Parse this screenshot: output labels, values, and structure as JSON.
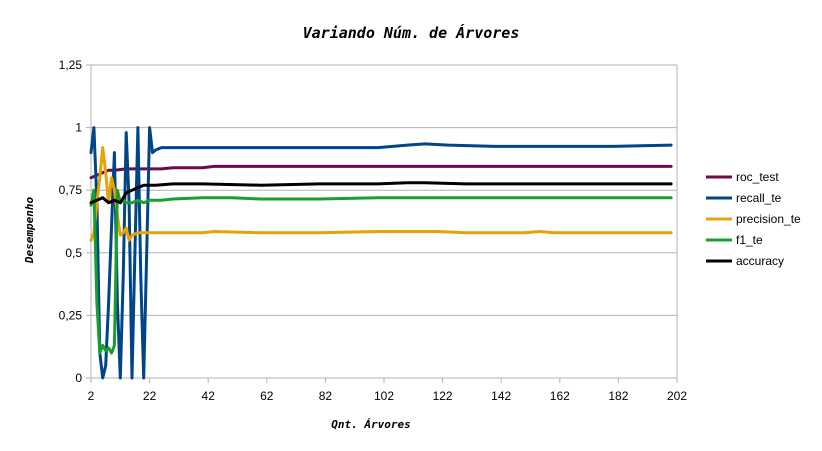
{
  "chart_data": {
    "type": "line",
    "title": "Variando Núm. de Árvores",
    "xlabel": "Qnt. Árvores",
    "ylabel": "Desempenho",
    "xlim": [
      2,
      202
    ],
    "ylim": [
      0,
      1.25
    ],
    "x_ticks": [
      "2",
      "22",
      "42",
      "62",
      "82",
      "102",
      "122",
      "142",
      "162",
      "182",
      "202"
    ],
    "y_ticks": [
      "0",
      "0,25",
      "0,5",
      "0,75",
      "1",
      "1,25"
    ],
    "grid": "horizontal",
    "legend_position": "right",
    "colors": {
      "roc_test": "#6b0b4e",
      "recall_te": "#004586",
      "precision_te": "#e8a202",
      "f1_te": "#18a02e",
      "accuracy": "#000000"
    },
    "series": [
      {
        "name": "roc_test",
        "points": [
          [
            2,
            0.8
          ],
          [
            4,
            0.81
          ],
          [
            6,
            0.82
          ],
          [
            8,
            0.83
          ],
          [
            10,
            0.83
          ],
          [
            14,
            0.835
          ],
          [
            18,
            0.835
          ],
          [
            22,
            0.835
          ],
          [
            26,
            0.835
          ],
          [
            30,
            0.84
          ],
          [
            34,
            0.84
          ],
          [
            40,
            0.84
          ],
          [
            44,
            0.845
          ],
          [
            60,
            0.845
          ],
          [
            80,
            0.845
          ],
          [
            100,
            0.845
          ],
          [
            120,
            0.845
          ],
          [
            140,
            0.845
          ],
          [
            160,
            0.845
          ],
          [
            180,
            0.845
          ],
          [
            200,
            0.845
          ]
        ]
      },
      {
        "name": "recall_te",
        "points": [
          [
            2,
            0.9
          ],
          [
            3,
            1.0
          ],
          [
            4,
            0.7
          ],
          [
            5,
            0.1
          ],
          [
            6,
            0.0
          ],
          [
            7,
            0.05
          ],
          [
            8,
            0.3
          ],
          [
            9,
            0.6
          ],
          [
            10,
            0.9
          ],
          [
            11,
            0.3
          ],
          [
            12,
            0.0
          ],
          [
            13,
            0.4
          ],
          [
            14,
            0.98
          ],
          [
            15,
            0.7
          ],
          [
            16,
            0.0
          ],
          [
            17,
            0.5
          ],
          [
            18,
            1.0
          ],
          [
            19,
            0.4
          ],
          [
            20,
            0.0
          ],
          [
            21,
            0.5
          ],
          [
            22,
            1.0
          ],
          [
            23,
            0.9
          ],
          [
            24,
            0.91
          ],
          [
            26,
            0.92
          ],
          [
            30,
            0.92
          ],
          [
            40,
            0.92
          ],
          [
            60,
            0.92
          ],
          [
            80,
            0.92
          ],
          [
            100,
            0.92
          ],
          [
            110,
            0.93
          ],
          [
            116,
            0.935
          ],
          [
            124,
            0.93
          ],
          [
            140,
            0.925
          ],
          [
            160,
            0.925
          ],
          [
            180,
            0.925
          ],
          [
            200,
            0.93
          ]
        ]
      },
      {
        "name": "precision_te",
        "points": [
          [
            2,
            0.55
          ],
          [
            3,
            0.58
          ],
          [
            4,
            0.7
          ],
          [
            5,
            0.8
          ],
          [
            6,
            0.92
          ],
          [
            7,
            0.82
          ],
          [
            8,
            0.7
          ],
          [
            9,
            0.8
          ],
          [
            10,
            0.75
          ],
          [
            11,
            0.65
          ],
          [
            12,
            0.57
          ],
          [
            13,
            0.58
          ],
          [
            14,
            0.6
          ],
          [
            15,
            0.55
          ],
          [
            16,
            0.57
          ],
          [
            18,
            0.58
          ],
          [
            20,
            0.58
          ],
          [
            24,
            0.58
          ],
          [
            30,
            0.58
          ],
          [
            40,
            0.58
          ],
          [
            44,
            0.585
          ],
          [
            60,
            0.58
          ],
          [
            80,
            0.58
          ],
          [
            100,
            0.585
          ],
          [
            120,
            0.585
          ],
          [
            130,
            0.58
          ],
          [
            150,
            0.58
          ],
          [
            155,
            0.585
          ],
          [
            160,
            0.58
          ],
          [
            180,
            0.58
          ],
          [
            200,
            0.58
          ]
        ]
      },
      {
        "name": "f1_te",
        "points": [
          [
            2,
            0.69
          ],
          [
            3,
            0.75
          ],
          [
            4,
            0.3
          ],
          [
            5,
            0.1
          ],
          [
            6,
            0.13
          ],
          [
            7,
            0.11
          ],
          [
            8,
            0.12
          ],
          [
            9,
            0.1
          ],
          [
            10,
            0.13
          ],
          [
            11,
            0.75
          ],
          [
            12,
            0.7
          ],
          [
            13,
            0.71
          ],
          [
            14,
            0.7
          ],
          [
            16,
            0.7
          ],
          [
            18,
            0.71
          ],
          [
            20,
            0.7
          ],
          [
            22,
            0.71
          ],
          [
            26,
            0.71
          ],
          [
            30,
            0.715
          ],
          [
            40,
            0.72
          ],
          [
            50,
            0.72
          ],
          [
            60,
            0.715
          ],
          [
            80,
            0.715
          ],
          [
            100,
            0.72
          ],
          [
            120,
            0.72
          ],
          [
            140,
            0.72
          ],
          [
            160,
            0.72
          ],
          [
            180,
            0.72
          ],
          [
            200,
            0.72
          ]
        ]
      },
      {
        "name": "accuracy",
        "points": [
          [
            2,
            0.7
          ],
          [
            4,
            0.71
          ],
          [
            6,
            0.72
          ],
          [
            8,
            0.7
          ],
          [
            10,
            0.71
          ],
          [
            12,
            0.7
          ],
          [
            14,
            0.74
          ],
          [
            16,
            0.75
          ],
          [
            18,
            0.76
          ],
          [
            20,
            0.77
          ],
          [
            24,
            0.77
          ],
          [
            30,
            0.775
          ],
          [
            40,
            0.775
          ],
          [
            60,
            0.77
          ],
          [
            80,
            0.775
          ],
          [
            100,
            0.775
          ],
          [
            110,
            0.78
          ],
          [
            116,
            0.78
          ],
          [
            130,
            0.775
          ],
          [
            150,
            0.775
          ],
          [
            170,
            0.775
          ],
          [
            190,
            0.775
          ],
          [
            200,
            0.775
          ]
        ]
      }
    ]
  }
}
